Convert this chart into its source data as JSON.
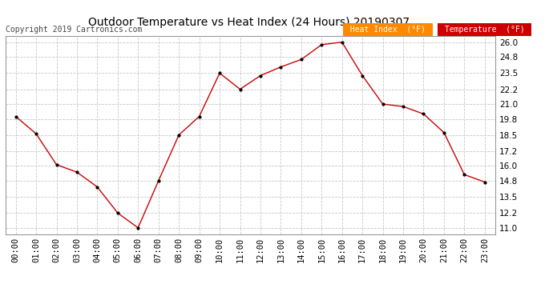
{
  "title": "Outdoor Temperature vs Heat Index (24 Hours) 20190307",
  "copyright": "Copyright 2019 Cartronics.com",
  "x_labels": [
    "00:00",
    "01:00",
    "02:00",
    "03:00",
    "04:00",
    "05:00",
    "06:00",
    "07:00",
    "08:00",
    "09:00",
    "10:00",
    "11:00",
    "12:00",
    "13:00",
    "14:00",
    "15:00",
    "16:00",
    "17:00",
    "18:00",
    "19:00",
    "20:00",
    "21:00",
    "22:00",
    "23:00"
  ],
  "temperature": [
    20.0,
    18.6,
    16.1,
    15.5,
    14.3,
    12.2,
    11.0,
    14.8,
    18.5,
    20.0,
    23.5,
    22.2,
    23.3,
    24.0,
    24.6,
    25.8,
    26.0,
    23.3,
    21.0,
    20.8,
    20.2,
    18.7,
    15.3,
    14.7
  ],
  "heat_index": [
    20.0,
    18.6,
    16.1,
    15.5,
    14.3,
    12.2,
    11.0,
    14.8,
    18.5,
    20.0,
    23.5,
    22.2,
    23.3,
    24.0,
    24.6,
    25.8,
    26.0,
    23.3,
    21.0,
    20.8,
    20.2,
    18.7,
    15.3,
    14.7
  ],
  "y_ticks": [
    11.0,
    12.2,
    13.5,
    14.8,
    16.0,
    17.2,
    18.5,
    19.8,
    21.0,
    22.2,
    23.5,
    24.8,
    26.0
  ],
  "ylim": [
    10.5,
    26.5
  ],
  "line_color": "#cc0000",
  "marker_color": "#000000",
  "bg_color": "#ffffff",
  "grid_color": "#c8c8c8",
  "legend_heat_index_bg": "#ff8800",
  "legend_temp_bg": "#cc0000",
  "legend_text_color": "#ffffff",
  "title_fontsize": 10,
  "copyright_fontsize": 7,
  "axis_fontsize": 7.5
}
